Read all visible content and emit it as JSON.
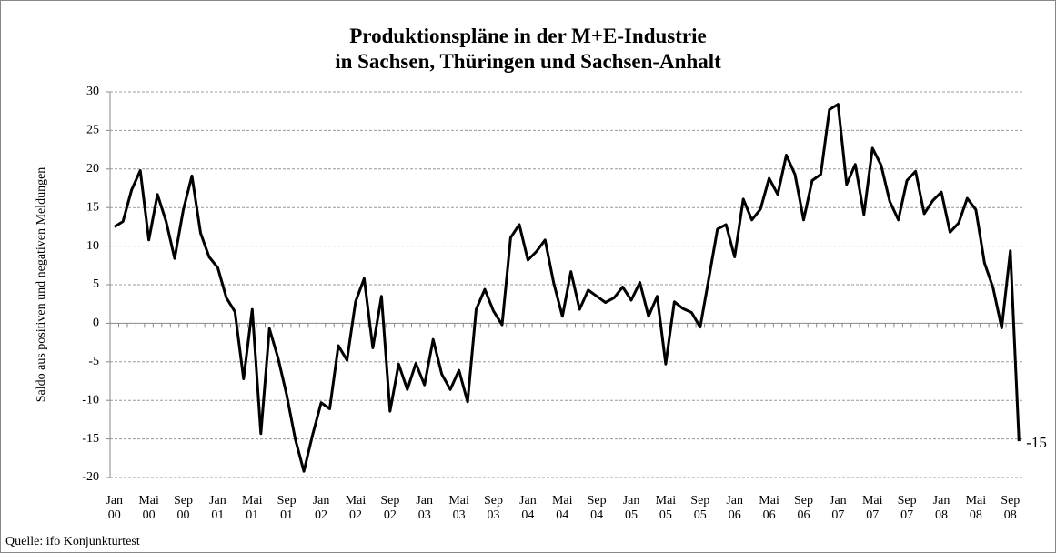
{
  "chart_data": {
    "type": "line",
    "title": "Produktionspläne in der M+E-Industrie\nin Sachsen, Thüringen und Sachsen-Anhalt",
    "y_label": "Saldo aus positiven und negativen Meldungen",
    "source": "Quelle: ifo Konjunkturtest",
    "categories": [
      "Jan\n00",
      null,
      null,
      null,
      "Mai\n00",
      null,
      null,
      null,
      "Sep\n00",
      null,
      null,
      null,
      "Jan\n01",
      null,
      null,
      null,
      "Mai\n01",
      null,
      null,
      null,
      "Sep\n01",
      null,
      null,
      null,
      "Jan\n02",
      null,
      null,
      null,
      "Mai\n02",
      null,
      null,
      null,
      "Sep\n02",
      null,
      null,
      null,
      "Jan\n03",
      null,
      null,
      null,
      "Mai\n03",
      null,
      null,
      null,
      "Sep\n03",
      null,
      null,
      null,
      "Jan\n04",
      null,
      null,
      null,
      "Mai\n04",
      null,
      null,
      null,
      "Sep\n04",
      null,
      null,
      null,
      "Jan\n05",
      null,
      null,
      null,
      "Mai\n05",
      null,
      null,
      null,
      "Sep\n05",
      null,
      null,
      null,
      "Jan\n06",
      null,
      null,
      null,
      "Mai\n06",
      null,
      null,
      null,
      "Sep\n06",
      null,
      null,
      null,
      "Jan\n07",
      null,
      null,
      null,
      "Mai\n07",
      null,
      null,
      null,
      "Sep\n07",
      null,
      null,
      null,
      "Jan\n08",
      null,
      null,
      null,
      "Mai\n08",
      null,
      null,
      null,
      "Sep\n08",
      null
    ],
    "series": [
      {
        "color": "#000000",
        "values": [
          12.5,
          13.2,
          17.3,
          19.8,
          10.8,
          16.7,
          13.2,
          8.4,
          14.7,
          19.1,
          11.7,
          8.6,
          7.2,
          3.3,
          1.5,
          -7.2,
          1.8,
          -14.3,
          -0.7,
          -4.5,
          -9.3,
          -15,
          -19.2,
          -14.5,
          -10.3,
          -11.1,
          -2.9,
          -4.8,
          2.8,
          5.8,
          -3.2,
          3.5,
          -11.4,
          -5.3,
          -8.6,
          -5.2,
          -8,
          -2.1,
          -6.6,
          -8.6,
          -6.1,
          -10.2,
          1.8,
          4.4,
          1.6,
          -0.2,
          11.1,
          12.8,
          8.2,
          9.3,
          10.8,
          5.2,
          0.9,
          6.7,
          1.8,
          4.3,
          3.5,
          2.7,
          3.3,
          4.7,
          3.0,
          5.3,
          0.9,
          3.5,
          -5.3,
          2.8,
          1.9,
          1.4,
          -0.5,
          5.8,
          12.2,
          12.8,
          8.6,
          16.1,
          13.4,
          14.8,
          18.8,
          16.7,
          21.8,
          19.3,
          13.4,
          18.5,
          19.3,
          27.7,
          28.4,
          18.0,
          20.6,
          14.1,
          22.7,
          20.5,
          15.8,
          13.4,
          18.5,
          19.7,
          14.2,
          15.9,
          17.0,
          11.8,
          13.0,
          16.2,
          14.7,
          7.8,
          4.6,
          -0.6,
          9.4,
          -15.3
        ],
        "value_labels": [
          null,
          null,
          null,
          null,
          null,
          null,
          null,
          null,
          null,
          null,
          null,
          null,
          null,
          null,
          null,
          null,
          null,
          null,
          null,
          null,
          null,
          null,
          null,
          null,
          null,
          null,
          null,
          null,
          null,
          null,
          null,
          null,
          null,
          null,
          null,
          null,
          null,
          null,
          null,
          null,
          null,
          null,
          null,
          null,
          null,
          null,
          null,
          null,
          null,
          null,
          null,
          null,
          null,
          null,
          null,
          null,
          null,
          null,
          null,
          null,
          null,
          null,
          null,
          null,
          null,
          null,
          null,
          null,
          null,
          null,
          null,
          null,
          null,
          null,
          null,
          null,
          null,
          null,
          null,
          null,
          null,
          null,
          null,
          null,
          null,
          null,
          null,
          null,
          null,
          null,
          null,
          null,
          null,
          null,
          null,
          null,
          null,
          null,
          null,
          null,
          null,
          null,
          null,
          null,
          null,
          "-15"
        ]
      }
    ],
    "ylim": [
      -20,
      30
    ],
    "yticks": [
      -20,
      -15,
      -10,
      -5,
      0,
      5,
      10,
      15,
      20,
      25,
      30
    ],
    "grid": true
  }
}
